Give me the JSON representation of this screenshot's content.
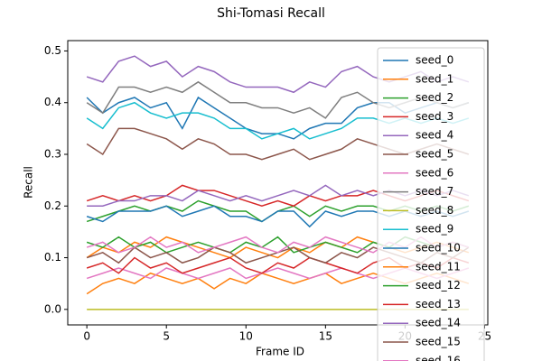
{
  "chart_data": {
    "type": "line",
    "title": "Shi-Tomasi Recall",
    "x_label": "Frame ID",
    "y_label": "Recall",
    "x": [
      0,
      1,
      2,
      3,
      4,
      5,
      6,
      7,
      8,
      9,
      10,
      11,
      12,
      13,
      14,
      15,
      16,
      17,
      18,
      19,
      20,
      21,
      22,
      23,
      24
    ],
    "xlim": [
      -1.2,
      25.2
    ],
    "xticks": [
      0,
      5,
      10,
      15,
      20,
      25
    ],
    "ylim": [
      -0.03,
      0.52
    ],
    "yticks": [
      {
        "value": 0,
        "label": "0.0"
      },
      0.1,
      0.2,
      0.3,
      0.4,
      0.5
    ],
    "legend": "upper right",
    "series": [
      {
        "name": "seed_0",
        "color": "#1f77b4",
        "values": [
          0.41,
          0.38,
          0.4,
          0.41,
          0.39,
          0.4,
          0.35,
          0.41,
          0.39,
          0.37,
          0.35,
          0.34,
          0.34,
          0.33,
          0.35,
          0.36,
          0.36,
          0.39,
          0.4,
          0.4,
          0.38,
          0.39,
          0.4,
          0.39,
          0.4
        ]
      },
      {
        "name": "seed_1",
        "color": "#ff7f0e",
        "values": [
          0.03,
          0.05,
          0.06,
          0.05,
          0.07,
          0.06,
          0.05,
          0.06,
          0.04,
          0.06,
          0.05,
          0.07,
          0.06,
          0.05,
          0.06,
          0.07,
          0.05,
          0.06,
          0.07,
          0.06,
          0.05,
          0.06,
          0.07,
          0.06,
          0.05
        ]
      },
      {
        "name": "seed_2",
        "color": "#2ca02c",
        "values": [
          0.17,
          0.18,
          0.19,
          0.2,
          0.19,
          0.2,
          0.19,
          0.21,
          0.2,
          0.19,
          0.19,
          0.17,
          0.19,
          0.2,
          0.18,
          0.2,
          0.19,
          0.2,
          0.2,
          0.19,
          0.2,
          0.19,
          0.2,
          0.19,
          0.2
        ]
      },
      {
        "name": "seed_3",
        "color": "#d62728",
        "values": [
          0.21,
          0.22,
          0.21,
          0.22,
          0.21,
          0.22,
          0.24,
          0.23,
          0.23,
          0.22,
          0.21,
          0.2,
          0.21,
          0.2,
          0.22,
          0.21,
          0.22,
          0.22,
          0.23,
          0.22,
          0.21,
          0.22,
          0.23,
          0.22,
          0.21
        ]
      },
      {
        "name": "seed_4",
        "color": "#9467bd",
        "values": [
          0.45,
          0.44,
          0.48,
          0.49,
          0.47,
          0.48,
          0.45,
          0.47,
          0.46,
          0.44,
          0.43,
          0.43,
          0.43,
          0.42,
          0.44,
          0.43,
          0.46,
          0.47,
          0.45,
          0.44,
          0.45,
          0.46,
          0.44,
          0.45,
          0.44
        ]
      },
      {
        "name": "seed_5",
        "color": "#8c564b",
        "values": [
          0.32,
          0.3,
          0.35,
          0.35,
          0.34,
          0.33,
          0.31,
          0.33,
          0.32,
          0.3,
          0.3,
          0.29,
          0.3,
          0.31,
          0.29,
          0.3,
          0.31,
          0.33,
          0.32,
          0.31,
          0.3,
          0.31,
          0.32,
          0.31,
          0.3
        ]
      },
      {
        "name": "seed_6",
        "color": "#e377c2",
        "values": [
          0.06,
          0.07,
          0.08,
          0.07,
          0.06,
          0.08,
          0.07,
          0.06,
          0.07,
          0.08,
          0.06,
          0.07,
          0.08,
          0.07,
          0.06,
          0.07,
          0.08,
          0.07,
          0.06,
          0.07,
          0.08,
          0.07,
          0.06,
          0.07,
          0.08
        ]
      },
      {
        "name": "seed_7",
        "color": "#7f7f7f",
        "values": [
          0.4,
          0.38,
          0.43,
          0.43,
          0.42,
          0.43,
          0.42,
          0.44,
          0.42,
          0.4,
          0.4,
          0.39,
          0.39,
          0.38,
          0.39,
          0.37,
          0.41,
          0.42,
          0.4,
          0.39,
          0.4,
          0.41,
          0.4,
          0.39,
          0.4
        ]
      },
      {
        "name": "seed_8",
        "color": "#bcbd22",
        "values": [
          0,
          0,
          0,
          0,
          0,
          0,
          0,
          0,
          0,
          0,
          0,
          0,
          0,
          0,
          0,
          0,
          0,
          0,
          0,
          0,
          0,
          0,
          0,
          0,
          0
        ]
      },
      {
        "name": "seed_9",
        "color": "#17becf",
        "values": [
          0.37,
          0.35,
          0.39,
          0.4,
          0.38,
          0.37,
          0.38,
          0.38,
          0.37,
          0.35,
          0.35,
          0.33,
          0.34,
          0.35,
          0.33,
          0.34,
          0.35,
          0.37,
          0.37,
          0.36,
          0.37,
          0.36,
          0.37,
          0.36,
          0.37
        ]
      },
      {
        "name": "seed_10",
        "color": "#1f77b4",
        "values": [
          0.18,
          0.17,
          0.19,
          0.19,
          0.19,
          0.2,
          0.18,
          0.19,
          0.2,
          0.18,
          0.18,
          0.17,
          0.19,
          0.19,
          0.16,
          0.19,
          0.18,
          0.19,
          0.19,
          0.18,
          0.19,
          0.18,
          0.19,
          0.18,
          0.19
        ]
      },
      {
        "name": "seed_11",
        "color": "#ff7f0e",
        "values": [
          0.1,
          0.12,
          0.11,
          0.13,
          0.12,
          0.14,
          0.13,
          0.12,
          0.11,
          0.1,
          0.12,
          0.11,
          0.1,
          0.12,
          0.11,
          0.13,
          0.12,
          0.14,
          0.13,
          0.12,
          0.11,
          0.12,
          0.13,
          0.12,
          0.11
        ]
      },
      {
        "name": "seed_12",
        "color": "#2ca02c",
        "values": [
          0.13,
          0.12,
          0.14,
          0.12,
          0.13,
          0.11,
          0.12,
          0.13,
          0.12,
          0.11,
          0.13,
          0.12,
          0.14,
          0.11,
          0.12,
          0.13,
          0.12,
          0.11,
          0.13,
          0.12,
          0.14,
          0.13,
          0.12,
          0.13,
          0.12
        ]
      },
      {
        "name": "seed_13",
        "color": "#d62728",
        "values": [
          0.08,
          0.09,
          0.07,
          0.1,
          0.08,
          0.09,
          0.07,
          0.08,
          0.09,
          0.1,
          0.08,
          0.07,
          0.09,
          0.08,
          0.1,
          0.09,
          0.08,
          0.07,
          0.09,
          0.1,
          0.08,
          0.09,
          0.08,
          0.1,
          0.09
        ]
      },
      {
        "name": "seed_14",
        "color": "#9467bd",
        "values": [
          0.2,
          0.2,
          0.21,
          0.21,
          0.22,
          0.22,
          0.21,
          0.23,
          0.22,
          0.21,
          0.22,
          0.21,
          0.22,
          0.23,
          0.22,
          0.24,
          0.22,
          0.23,
          0.22,
          0.23,
          0.22,
          0.23,
          0.22,
          0.23,
          0.22
        ]
      },
      {
        "name": "seed_15",
        "color": "#8c564b",
        "values": [
          0.1,
          0.11,
          0.09,
          0.12,
          0.1,
          0.11,
          0.09,
          0.1,
          0.12,
          0.11,
          0.09,
          0.1,
          0.11,
          0.12,
          0.1,
          0.09,
          0.11,
          0.1,
          0.12,
          0.11,
          0.1,
          0.09,
          0.11,
          0.1,
          0.12
        ]
      },
      {
        "name": "seed_16",
        "color": "#e377c2",
        "values": [
          0.12,
          0.13,
          0.11,
          0.12,
          0.14,
          0.12,
          0.13,
          0.11,
          0.12,
          0.13,
          0.14,
          0.12,
          0.11,
          0.13,
          0.12,
          0.14,
          0.13,
          0.12,
          0.11,
          0.13,
          0.12,
          0.14,
          0.12,
          0.13,
          0.12
        ]
      }
    ]
  }
}
